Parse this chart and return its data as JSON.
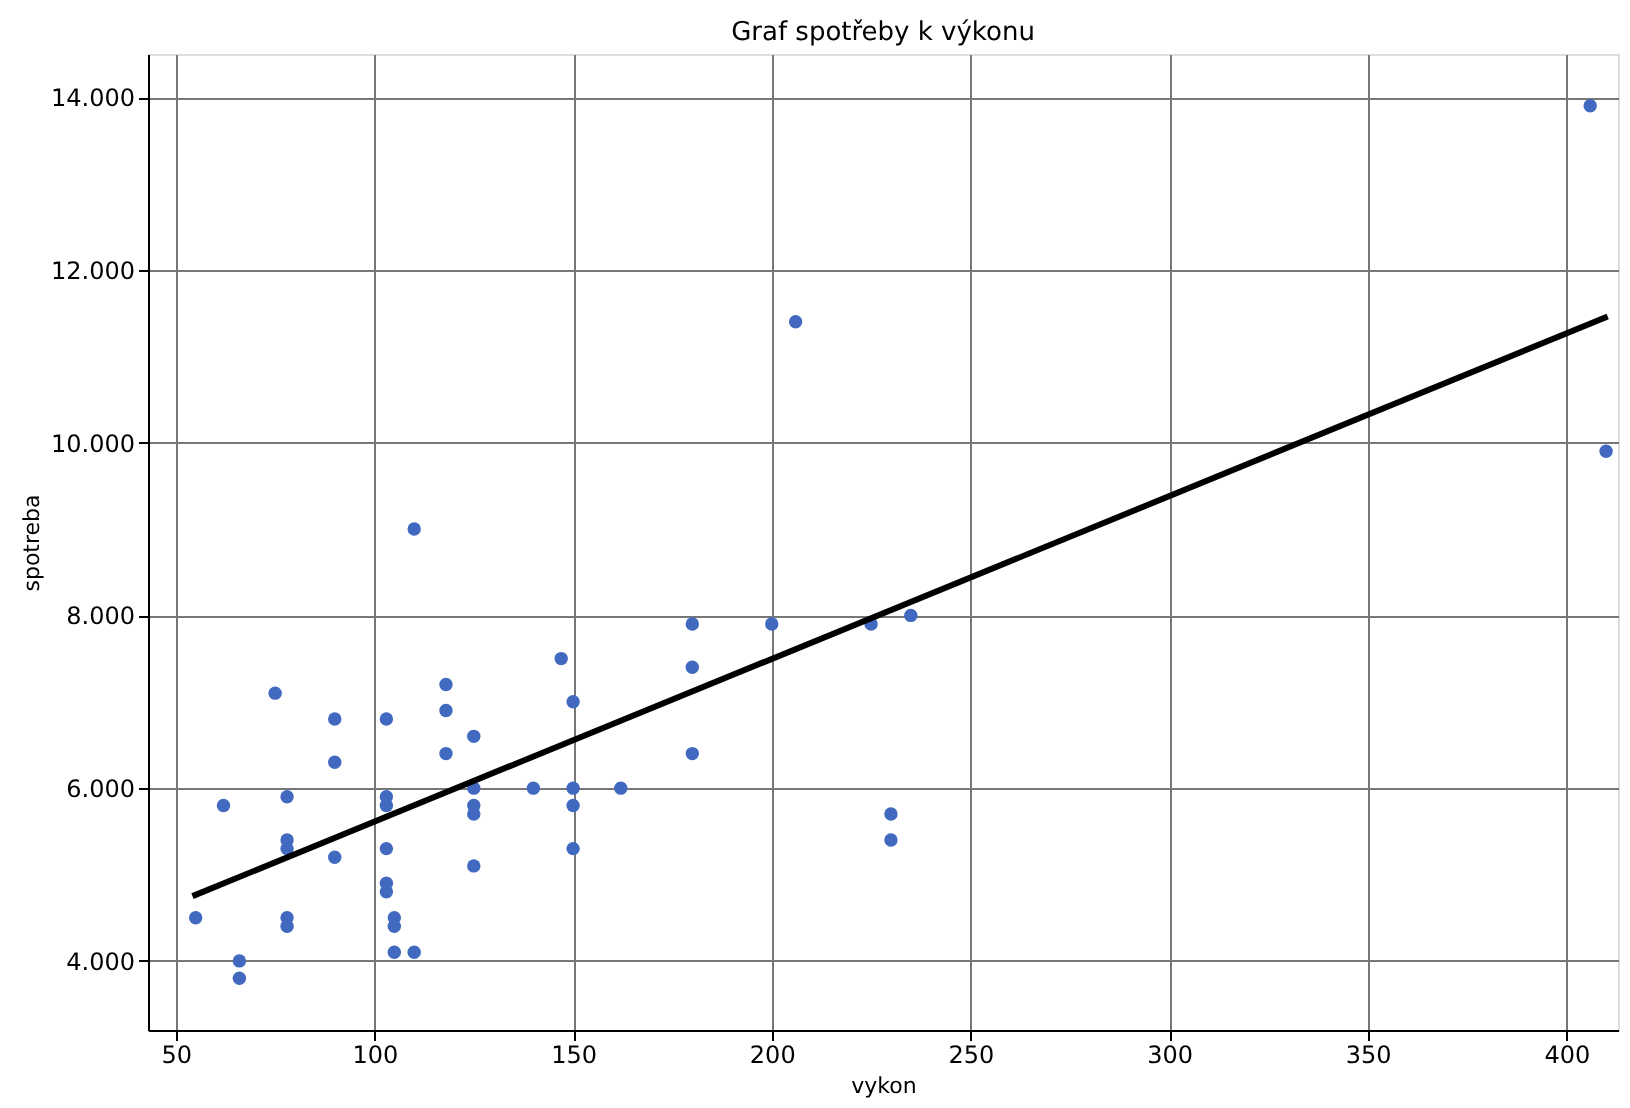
{
  "chart_data": {
    "type": "scatter",
    "title": "Graf spotřeby k výkonu",
    "xlabel": "vykon",
    "ylabel": "spotreba",
    "xlim": [
      43,
      413
    ],
    "ylim": [
      3200,
      14500
    ],
    "xticks": [
      50,
      100,
      150,
      200,
      250,
      300,
      350,
      400
    ],
    "yticks": [
      {
        "value": 4000,
        "label": "4.000"
      },
      {
        "value": 6000,
        "label": "6.000"
      },
      {
        "value": 8000,
        "label": "8.000"
      },
      {
        "value": 10000,
        "label": "10.000"
      },
      {
        "value": 12000,
        "label": "12.000"
      },
      {
        "value": 14000,
        "label": "14.000"
      }
    ],
    "grid": true,
    "marker": "circle",
    "series": [
      {
        "color": "#4169c0",
        "x": [
          55,
          62,
          66,
          66,
          75,
          78,
          78,
          78,
          78,
          78,
          90,
          90,
          90,
          103,
          103,
          103,
          103,
          103,
          103,
          105,
          105,
          105,
          110,
          110,
          118,
          118,
          118,
          125,
          125,
          125,
          125,
          125,
          140,
          147,
          150,
          150,
          150,
          150,
          162,
          180,
          180,
          180,
          200,
          206,
          225,
          230,
          230,
          235,
          406,
          410
        ],
        "values": [
          4500,
          5800,
          4000,
          3800,
          7100,
          5900,
          5400,
          5300,
          4500,
          4400,
          6800,
          6300,
          5200,
          6800,
          5900,
          5800,
          5300,
          4900,
          4800,
          4500,
          4400,
          4100,
          4100,
          9000,
          7200,
          6900,
          6400,
          6600,
          6000,
          5800,
          5700,
          5100,
          6000,
          7500,
          7000,
          6000,
          5800,
          5300,
          6000,
          7900,
          7400,
          6400,
          7900,
          11400,
          7900,
          5700,
          5400,
          8000,
          13900,
          9900
        ]
      },
      {
        "type": "line",
        "color": "#000000",
        "marker": "none",
        "line_style": "solid",
        "x": [
          54.2,
          410.4
        ],
        "values": [
          4750,
          11460
        ]
      }
    ]
  }
}
